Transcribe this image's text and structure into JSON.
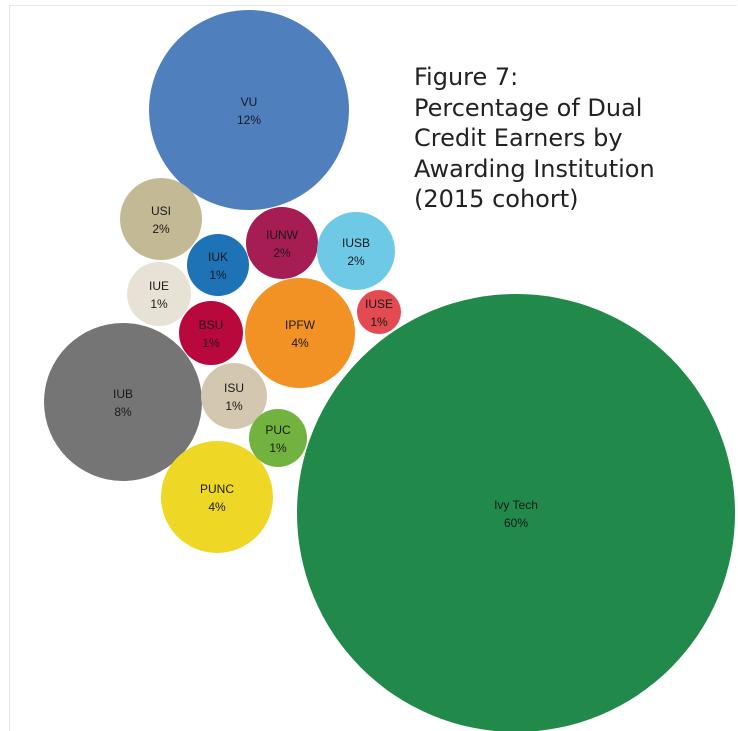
{
  "chart_data": {
    "type": "bubble",
    "title": "Figure 7:\nPercentage of Dual\nCredit Earners by\nAwarding Institution\n(2015 cohort)",
    "legend": "none",
    "grid": false,
    "series": [
      {
        "name": "Ivy Tech",
        "label": "60%",
        "value": 60,
        "color": "#21894a"
      },
      {
        "name": "VU",
        "label": "12%",
        "value": 12,
        "color": "#4f80bd"
      },
      {
        "name": "IUB",
        "label": "8%",
        "value": 8,
        "color": "#757575"
      },
      {
        "name": "IPFW",
        "label": "4%",
        "value": 4,
        "color": "#f29224"
      },
      {
        "name": "PUNC",
        "label": "4%",
        "value": 4,
        "color": "#eed725"
      },
      {
        "name": "USI",
        "label": "2%",
        "value": 2,
        "color": "#c4b995"
      },
      {
        "name": "IUNW",
        "label": "2%",
        "value": 2,
        "color": "#a51d52"
      },
      {
        "name": "IUSB",
        "label": "2%",
        "value": 2,
        "color": "#6dc9e6"
      },
      {
        "name": "IUK",
        "label": "1%",
        "value": 1,
        "color": "#1e73b7"
      },
      {
        "name": "IUE",
        "label": "1%",
        "value": 1,
        "color": "#e8e2d6"
      },
      {
        "name": "BSU",
        "label": "1%",
        "value": 1,
        "color": "#b9083c"
      },
      {
        "name": "IUSE",
        "label": "1%",
        "value": 1,
        "color": "#e34a52"
      },
      {
        "name": "ISU",
        "label": "1%",
        "value": 1,
        "color": "#d4c7af"
      },
      {
        "name": "PUC",
        "label": "1%",
        "value": 1,
        "color": "#72b33f"
      }
    ]
  }
}
